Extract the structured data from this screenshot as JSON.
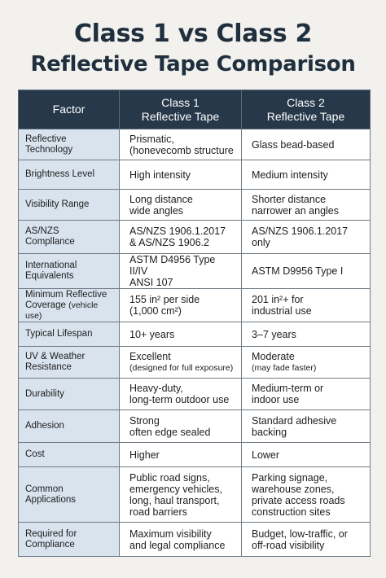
{
  "title": {
    "line1": "Class 1 vs Class 2",
    "line2": "Reflective Tape Comparison"
  },
  "table": {
    "headers": {
      "factor": "Factor",
      "class1": "Class 1\nReflective Tape",
      "class2": "Class 2\nReflective Tape"
    },
    "rows": [
      {
        "factor": "Reflective\nTechnology",
        "class1": "Prismatic,\n(honevecomb structure",
        "class2": "Glass bead-based"
      },
      {
        "factor": "Brightness Level",
        "class1": "High intensity",
        "class2": "Medium intensity"
      },
      {
        "factor": "Visibility Range",
        "class1": "Long distance\nwide angles",
        "class2": "Shorter distance\nnarrower an angles"
      },
      {
        "factor": "AS/NZS\nCompllance",
        "class1": "AS/NZS 1906.1.2017\n& AS/NZS 1906.2",
        "class2": "AS/NZS 1906.1.2017\nonly"
      },
      {
        "factor": "International\nEquivalents",
        "class1": "ASTM D4956 Type II/IV\nANSI 107",
        "class2": "ASTM D9956 Type I"
      },
      {
        "factor": "Minimum Reflective\nCoverage",
        "factor_note": "(vehicle use)",
        "class1": "155 in² per side\n(1,000 cm²)",
        "class2": "201 in²+ for\nindustrial use"
      },
      {
        "factor": "Typical Lifespan",
        "class1": "10+ years",
        "class2": "3–7 years"
      },
      {
        "factor": "UV & Weather\nResistance",
        "class1": "Excellent",
        "class1_note": "(designed for full exposure)",
        "class2": "Moderate",
        "class2_note": "(may fade faster)"
      },
      {
        "factor": "Durability",
        "class1": "Heavy-duty,\nlong-term outdoor use",
        "class2": "Medium-term or\nindoor use"
      },
      {
        "factor": "Adhesion",
        "class1": "Strong\noften edge sealed",
        "class2": "Standard adhesive\nbacking"
      },
      {
        "factor": "Cost",
        "class1": "Higher",
        "class2": "Lower"
      },
      {
        "factor": "Common\nApplications",
        "class1": "Public road signs,\nemergency vehicles,\nlong, haul transport,\nroad barriers",
        "class2": "Parking signage,\nwarehouse zones,\nprivate access roads\nconstruction sites"
      },
      {
        "factor": "Required for\nCompliance",
        "class1": "Maximum visibility\nand legal compliance",
        "class2": "Budget, low-traffic, or\noff-road visibility"
      }
    ]
  },
  "colors": {
    "header_bg": "#26384a",
    "factor_bg": "#d8e3ee",
    "page_bg": "#f2f1ed"
  }
}
